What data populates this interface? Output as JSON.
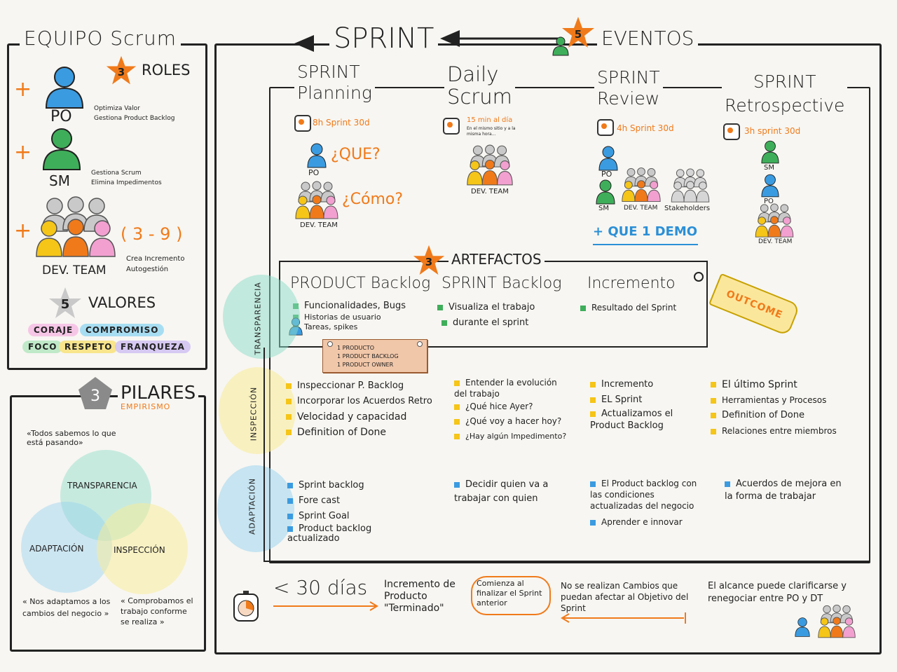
{
  "team": {
    "title": "EQUIPO Scrum",
    "roles_count": "3",
    "roles_label": "ROLES",
    "po_label": "PO",
    "po_items": [
      "Optimiza Valor",
      "Gestiona Product Backlog"
    ],
    "sm_label": "SM",
    "sm_items": [
      "Gestiona Scrum",
      "Elimina Impedimentos"
    ],
    "dev_label": "DEV. TEAM",
    "dev_size": "( 3 - 9 )",
    "dev_items": [
      "Crea Incremento",
      "Autogestión"
    ],
    "values_count": "5",
    "values_label": "VALORES",
    "values": [
      "CORAJE",
      "COMPROMISO",
      "FOCO",
      "RESPETO",
      "FRANQUEZA"
    ]
  },
  "pillars": {
    "count": "3",
    "title": "PILARES",
    "subtitle": "EMPIRISMO",
    "quote_top": "«Todos sabemos lo que está pasando»",
    "transparency": "TRANSPARENCIA",
    "adaptation": "ADAPTACIÓN",
    "inspection": "INSPECCIÓN",
    "quote_left": "« Nos adaptamos a los cambios del negocio »",
    "quote_right": "« Comprobamos el trabajo conforme se realiza »"
  },
  "sprint": {
    "title": "SPRINT",
    "events_count": "5",
    "events_label": "EVENTOS",
    "events": [
      {
        "title1": "SPRINT",
        "title2": "Planning",
        "time": "8h Sprint 30d"
      },
      {
        "title1": "Daily",
        "title2": "Scrum",
        "time": "15 min al día",
        "note": "En el mismo sitio y a la misma hora..."
      },
      {
        "title1": "SPRINT",
        "title2": "Review",
        "time": "4h Sprint 30d"
      },
      {
        "title1": "SPRINT",
        "title2": "Retrospective",
        "time": "3h sprint 30d"
      }
    ],
    "planning_po": "PO",
    "planning_what": "¿QUE?",
    "planning_how": "¿Cómo?",
    "planning_dev": "DEV. TEAM",
    "daily_dev": "DEV. TEAM",
    "review_po": "PO",
    "review_sm": "SM",
    "review_dev": "DEV. TEAM",
    "review_stake": "Stakeholders",
    "review_demo": "+ QUE 1 DEMO",
    "retro_sm": "SM",
    "retro_po": "PO",
    "retro_dev": "DEV. TEAM"
  },
  "artifacts": {
    "count": "3",
    "label": "ARTEFACTOS",
    "product_title": "PRODUCT Backlog",
    "product_items": [
      "Funcionalidades, Bugs",
      "Historias de usuario",
      "Tareas, spikes"
    ],
    "sprint_title": "SPRINT Backlog",
    "sprint_items": [
      "Visualiza el trabajo",
      "durante el sprint"
    ],
    "increment_title": "Incremento",
    "increment_items": [
      "Resultado del Sprint"
    ],
    "outcome": "OUTCOME",
    "note": [
      "1 PRODUCTO",
      "1 PRODUCT BACKLOG",
      "1 PRODUCT OWNER"
    ]
  },
  "axis": {
    "transparency": "TRANSPARENCIA",
    "inspection": "INSPECCIÓN",
    "adaptation": "ADAPTACIÓN"
  },
  "inspection": {
    "planning": [
      "Inspeccionar P. Backlog",
      "Incorporar los Acuerdos Retro",
      "Velocidad y capacidad",
      "Definition of Done"
    ],
    "daily": [
      "Entender la evolución del trabajo",
      "¿Qué hice Ayer?",
      "¿Qué voy a hacer hoy?",
      "¿Hay algún Impedimento?"
    ],
    "review": [
      "Incremento",
      "EL Sprint",
      "Actualizamos el Product Backlog"
    ],
    "retro": [
      "El último Sprint",
      "Herramientas y Procesos",
      "Definition of Done",
      "Relaciones entre miembros"
    ]
  },
  "adaptation": {
    "planning": [
      "Sprint backlog",
      "Fore cast",
      "Sprint Goal",
      "Product backlog actualizado"
    ],
    "daily": [
      "Decidir quien va a trabajar con quien"
    ],
    "review": [
      "El Product backlog con las condiciones actualizadas del negocio",
      "Aprender e innovar"
    ],
    "retro": [
      "Acuerdos de mejora en la forma de trabajar"
    ]
  },
  "bottom": {
    "duration": "< 30 días",
    "increment": "Incremento de Producto \"Terminado\"",
    "starts": "Comienza al finalizar el Sprint anterior",
    "no_changes": "No se realizan Cambios que puedan afectar al Objetivo del Sprint",
    "scope": "El alcance puede clarificarse y renegociar entre PO y DT"
  },
  "colors": {
    "orange": "#f07a1a",
    "blue": "#3b9be0",
    "green": "#3fae5a",
    "yellow": "#f5c518",
    "pink": "#f2a0d0",
    "grey": "#c9c9c9"
  }
}
